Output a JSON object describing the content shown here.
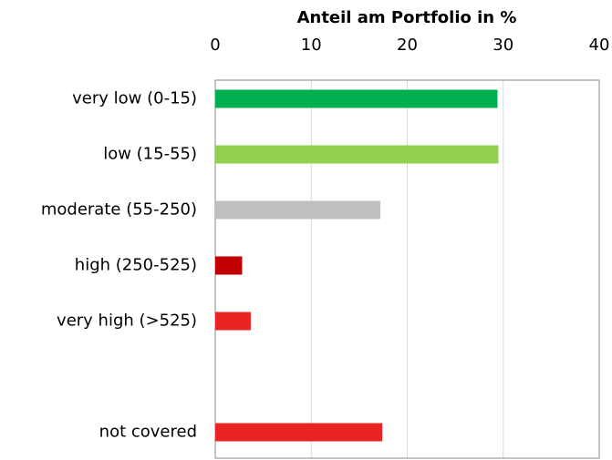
{
  "chart_data": {
    "type": "bar",
    "orientation": "horizontal",
    "title": "Anteil am Portfolio in %",
    "categories": [
      "very low (0-15)",
      "low (15-55)",
      "moderate (55-250)",
      "high (250-525)",
      "very high (>525)",
      null,
      "not covered"
    ],
    "values": [
      29.4,
      29.5,
      17.2,
      2.8,
      3.7,
      null,
      17.4
    ],
    "colors": [
      "#00b050",
      "#92d050",
      "#bfbfbf",
      "#c00000",
      "#e82424",
      null,
      "#e82424"
    ],
    "xlim": [
      0,
      40
    ],
    "xticks": [
      0,
      10,
      20,
      30,
      40
    ],
    "grid": true
  }
}
